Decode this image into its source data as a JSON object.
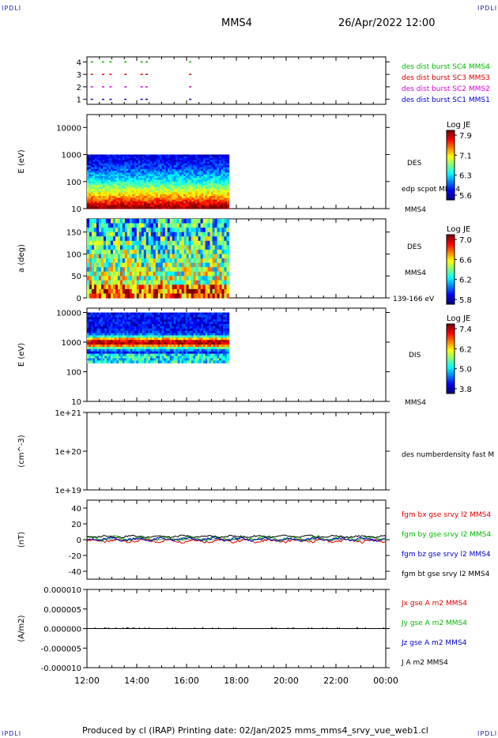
{
  "header": {
    "corner_tl": "IPDLI",
    "corner_tr": "IPDLI",
    "corner_bl": "IPDLI",
    "corner_br": "IPDLI",
    "satellite": "MMS4",
    "date_time": "26/Apr/2022 12:00"
  },
  "footer": {
    "text": "Produced by cl (IRAP)   Printing date: 02/Jan/2025   mms_mms4_srvy_vue_web1.cl"
  },
  "colors": {
    "blue": "#0000cc",
    "magenta": "#dd00dd",
    "red": "#dd0000",
    "green": "#00bb00",
    "black": "#000000"
  },
  "chart_data": [
    {
      "id": "burst",
      "type": "scatter",
      "x_range_hours": [
        12,
        24
      ],
      "ylim": [
        0.6,
        4.4
      ],
      "y_ticks": [
        "1",
        "2",
        "3",
        "4"
      ],
      "series": [
        {
          "name": "des dist burst SC1 MMS1",
          "color": "#0000cc",
          "y": 1
        },
        {
          "name": "des dist burst SC2 MMS2",
          "color": "#dd00dd",
          "y": 2
        },
        {
          "name": "des dist burst SC3 MMS3",
          "color": "#dd0000",
          "y": 3
        },
        {
          "name": "des dist burst SC4 MMS4",
          "color": "#00bb00",
          "y": 4
        }
      ],
      "burst_times": [
        12.15,
        12.6,
        12.9,
        13.5,
        14.15,
        14.35,
        16.1
      ]
    },
    {
      "id": "des-energy",
      "type": "heatmap",
      "ylabel": "E (eV)",
      "scale": "log",
      "ylim": [
        10,
        30000
      ],
      "y_ticks": [
        "10",
        "100",
        "1000",
        "10000"
      ],
      "data_x_range": [
        12,
        17.7
      ],
      "data_y_range": [
        10,
        1000
      ],
      "right_labels": [
        "DES",
        "edp scpot MMS4",
        "MMS4"
      ],
      "colorbar": {
        "title": "Log JE",
        "ticks": [
          "7.9",
          "7.1",
          "6.3",
          "5.6"
        ],
        "min": 5.6,
        "max": 7.9
      }
    },
    {
      "id": "des-pitch",
      "type": "heatmap",
      "ylabel": "a (deg)",
      "ylim": [
        0,
        180
      ],
      "y_ticks": [
        "0",
        "50",
        "100",
        "150"
      ],
      "data_x_range": [
        12,
        17.7
      ],
      "right_labels": [
        "DES",
        "MMS4",
        "139-166 eV"
      ],
      "colorbar": {
        "title": "Log JE",
        "ticks": [
          "7.0",
          "6.6",
          "6.2",
          "5.8"
        ],
        "min": 5.8,
        "max": 7.0
      }
    },
    {
      "id": "dis-energy",
      "type": "heatmap",
      "ylabel": "E (eV)",
      "scale": "log",
      "ylim": [
        10,
        14000
      ],
      "y_ticks": [
        "10",
        "100",
        "1000",
        "10000"
      ],
      "data_x_range": [
        12,
        17.7
      ],
      "data_y_range": [
        200,
        10000
      ],
      "right_labels": [
        "DIS",
        "MMS4"
      ],
      "colorbar": {
        "title": "Log JE",
        "ticks": [
          "7.4",
          "6.2",
          "5.0",
          "3.8"
        ],
        "min": 3.8,
        "max": 7.4
      }
    },
    {
      "id": "density",
      "type": "line",
      "ylabel": "(cm^-3)",
      "scale": "log",
      "ylim": [
        1e+19,
        1e+21
      ],
      "y_ticks": [
        "1e+19",
        "1e+20",
        "1e+21"
      ],
      "right_labels": [
        "des numberdensity fast M"
      ]
    },
    {
      "id": "fgm",
      "type": "line",
      "ylabel": "(nT)",
      "ylim": [
        -50,
        50
      ],
      "y_ticks": [
        "-40",
        "-20",
        "0",
        "20",
        "40"
      ],
      "series": [
        {
          "name": "fgm bx gse srvy l2 MMS4",
          "color": "#dd0000",
          "mean": -1.5,
          "amp": 1.5
        },
        {
          "name": "fgm by gse srvy l2 MMS4",
          "color": "#00bb00",
          "mean": 1.5,
          "amp": 2
        },
        {
          "name": "fgm bz gse srvy l2 MMS4",
          "color": "#0000cc",
          "mean": 0.5,
          "amp": 1.5
        },
        {
          "name": "fgm bt gse srvy l2 MMS4",
          "color": "#000000",
          "mean": 4,
          "amp": 1
        }
      ]
    },
    {
      "id": "current",
      "type": "line",
      "ylabel": "(A/m2)",
      "ylim": [
        -1e-05,
        1e-05
      ],
      "y_ticks": [
        "-0.000010",
        "-0.000005",
        "0.000000",
        "0.000005",
        "0.000010"
      ],
      "series": [
        {
          "name": "Jx gse A m2 MMS4",
          "color": "#dd0000"
        },
        {
          "name": "Jy gse A m2 MMS4",
          "color": "#00bb00"
        },
        {
          "name": "Jz gse A m2 MMS4",
          "color": "#0000cc"
        },
        {
          "name": "J A m2 MMS4",
          "color": "#000000"
        }
      ]
    }
  ],
  "time_axis": {
    "labels": [
      "12:00",
      "14:00",
      "16:00",
      "18:00",
      "20:00",
      "22:00",
      "00:00"
    ],
    "hours": [
      12,
      14,
      16,
      18,
      20,
      22,
      24
    ]
  }
}
